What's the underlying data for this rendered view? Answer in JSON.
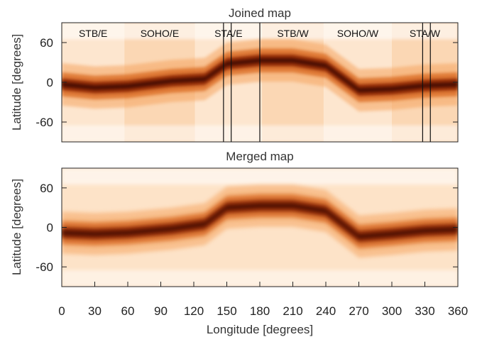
{
  "chart_data": [
    {
      "type": "heatmap",
      "title": "Joined map",
      "ylabel": "Latitude [degrees]",
      "xlim": [
        0,
        360
      ],
      "ylim": [
        -90,
        90
      ],
      "y_ticks": [
        60,
        0,
        -60
      ],
      "y_tick_labels": [
        "60",
        "0",
        "-60"
      ],
      "colormap": [
        "#ffffff",
        "#fde3c8",
        "#f5a461",
        "#d8661c",
        "#8a2200",
        "#2a0400"
      ],
      "segments": [
        {
          "label": "STB/E",
          "lon_start": 0,
          "lon_end": 57
        },
        {
          "label": "SOHO/E",
          "lon_start": 57,
          "lon_end": 121
        },
        {
          "label": "STA/E",
          "lon_start": 121,
          "lon_end": 182
        },
        {
          "label": "STB/W",
          "lon_start": 182,
          "lon_end": 238
        },
        {
          "label": "SOHO/W",
          "lon_start": 238,
          "lon_end": 300
        },
        {
          "label": "STA/W",
          "lon_start": 300,
          "lon_end": 360
        }
      ],
      "gap_lines_lon": [
        147,
        154,
        180,
        328,
        335
      ],
      "band_ridge": [
        {
          "lon": 0,
          "lat": -3
        },
        {
          "lon": 30,
          "lat": -8
        },
        {
          "lon": 60,
          "lat": -6
        },
        {
          "lon": 100,
          "lat": 2
        },
        {
          "lon": 130,
          "lat": 5
        },
        {
          "lon": 150,
          "lat": 28
        },
        {
          "lon": 180,
          "lat": 33
        },
        {
          "lon": 210,
          "lat": 33
        },
        {
          "lon": 240,
          "lat": 25
        },
        {
          "lon": 270,
          "lat": -12
        },
        {
          "lon": 300,
          "lat": -10
        },
        {
          "lon": 330,
          "lat": -5
        },
        {
          "lon": 360,
          "lat": -3
        }
      ]
    },
    {
      "type": "heatmap",
      "title": "Merged map",
      "xlabel": "Longitude [degrees]",
      "ylabel": "Latitude [degrees]",
      "xlim": [
        0,
        360
      ],
      "ylim": [
        -90,
        90
      ],
      "x_ticks": [
        0,
        30,
        60,
        90,
        120,
        150,
        180,
        210,
        240,
        270,
        300,
        330,
        360
      ],
      "x_tick_labels": [
        "0",
        "30",
        "60",
        "90",
        "120",
        "150",
        "180",
        "210",
        "240",
        "270",
        "300",
        "330",
        "360"
      ],
      "y_ticks": [
        60,
        0,
        -60
      ],
      "y_tick_labels": [
        "60",
        "0",
        "-60"
      ],
      "colormap": [
        "#ffffff",
        "#fde3c8",
        "#f5a461",
        "#d8661c",
        "#8a2200",
        "#2a0400"
      ],
      "band_ridge": [
        {
          "lon": 0,
          "lat": -8
        },
        {
          "lon": 30,
          "lat": -10
        },
        {
          "lon": 60,
          "lat": -8
        },
        {
          "lon": 100,
          "lat": -2
        },
        {
          "lon": 130,
          "lat": 5
        },
        {
          "lon": 150,
          "lat": 30
        },
        {
          "lon": 180,
          "lat": 33
        },
        {
          "lon": 210,
          "lat": 33
        },
        {
          "lon": 240,
          "lat": 25
        },
        {
          "lon": 270,
          "lat": -14
        },
        {
          "lon": 300,
          "lat": -10
        },
        {
          "lon": 330,
          "lat": -5
        },
        {
          "lon": 360,
          "lat": -3
        }
      ]
    }
  ]
}
